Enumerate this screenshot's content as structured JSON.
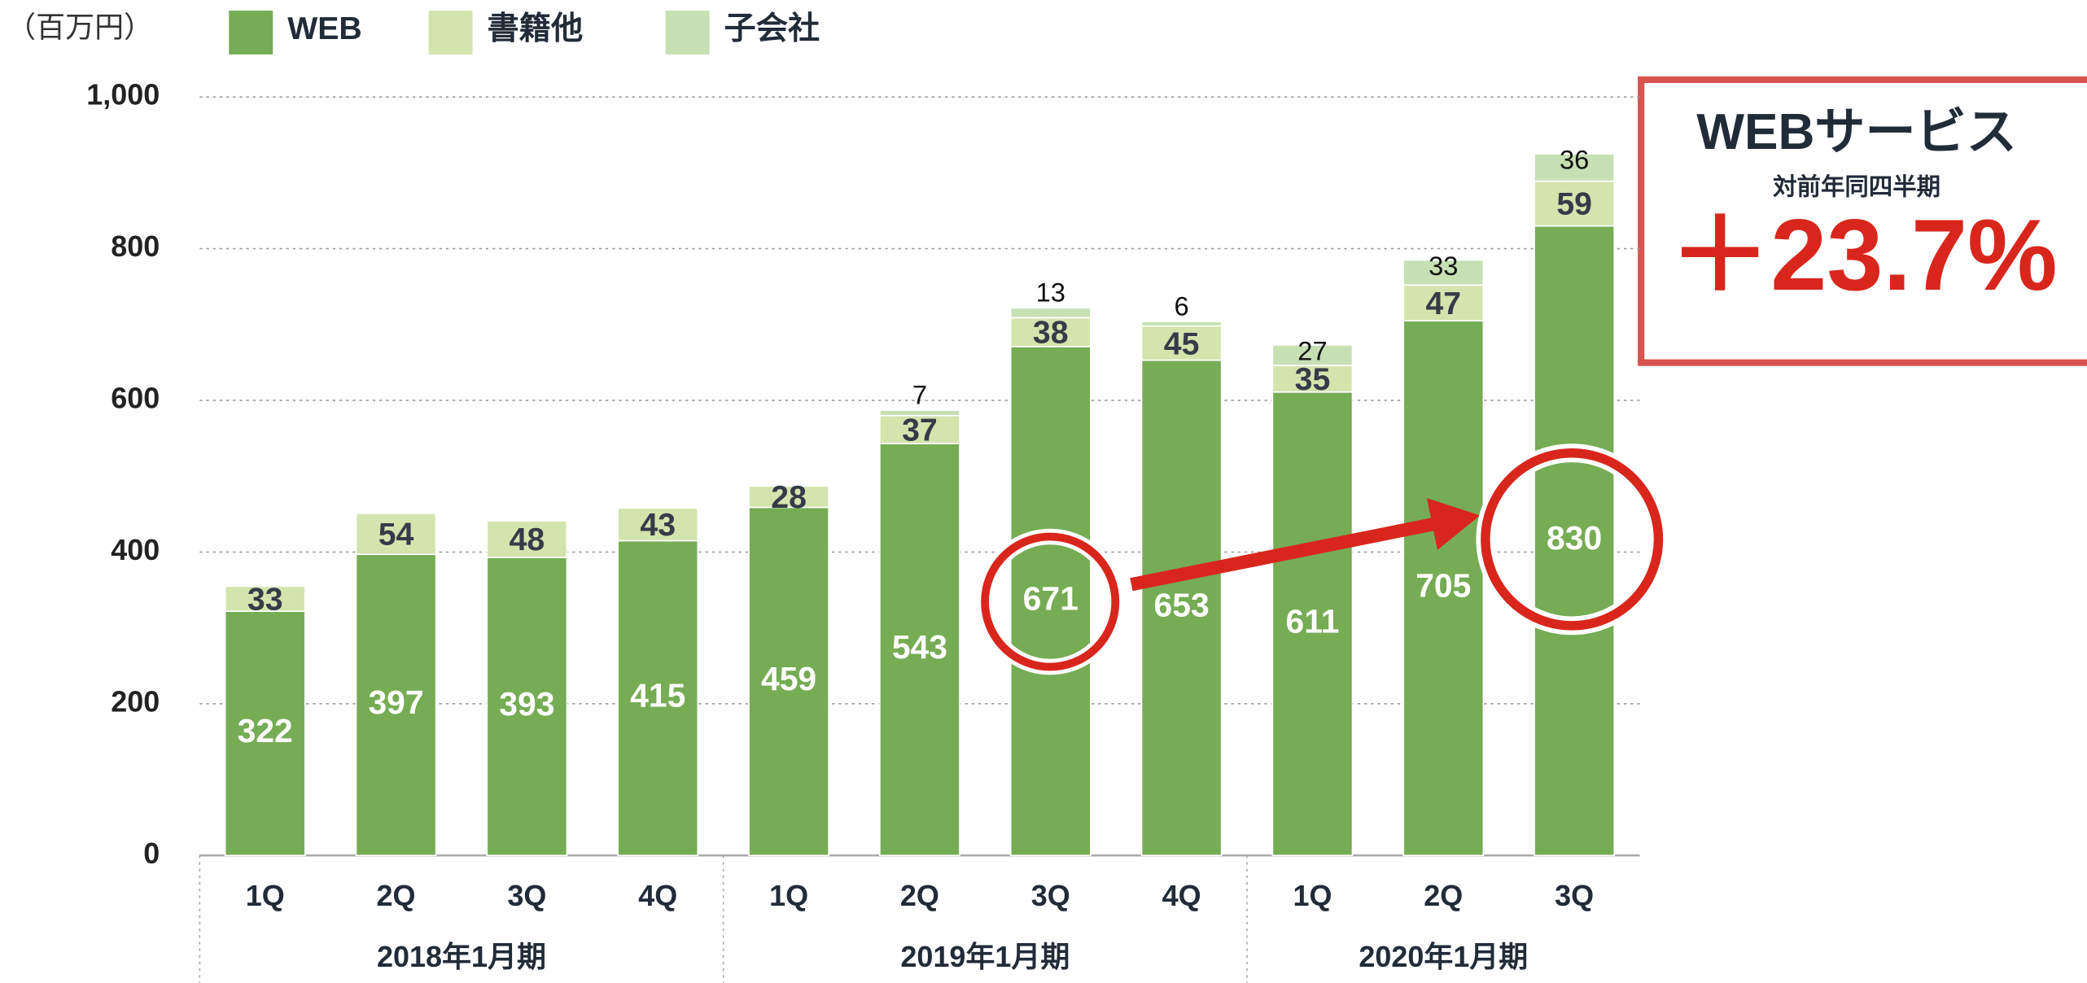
{
  "chart_data": {
    "type": "stacked_bar",
    "unit_label": "（百万円）",
    "categories": [
      "1Q",
      "2Q",
      "3Q",
      "4Q",
      "1Q",
      "2Q",
      "3Q",
      "4Q",
      "1Q",
      "2Q",
      "3Q"
    ],
    "groups": [
      {
        "label": "2018年1月期",
        "count": 4
      },
      {
        "label": "2019年1月期",
        "count": 4
      },
      {
        "label": "2020年1月期",
        "count": 3
      }
    ],
    "series": [
      {
        "name": "WEB",
        "color": "#76ac54",
        "values": [
          322,
          397,
          393,
          415,
          459,
          543,
          671,
          653,
          611,
          705,
          830
        ]
      },
      {
        "name": "書籍他",
        "color": "#d3e4ad",
        "values": [
          33,
          54,
          48,
          43,
          28,
          37,
          38,
          45,
          35,
          47,
          59
        ]
      },
      {
        "name": "子会社",
        "color": "#c6e0b4",
        "values": [
          null,
          null,
          null,
          null,
          null,
          7,
          13,
          6,
          27,
          33,
          36
        ]
      }
    ],
    "ylim": [
      0,
      1000
    ],
    "yticks": [
      0,
      200,
      400,
      600,
      800,
      {
        "value": 1000,
        "label": "1,000"
      }
    ],
    "grid": true,
    "annotation": {
      "title": "WEBサービス",
      "subtitle": "対前年同四半期",
      "value_text": "＋23.7%"
    }
  }
}
